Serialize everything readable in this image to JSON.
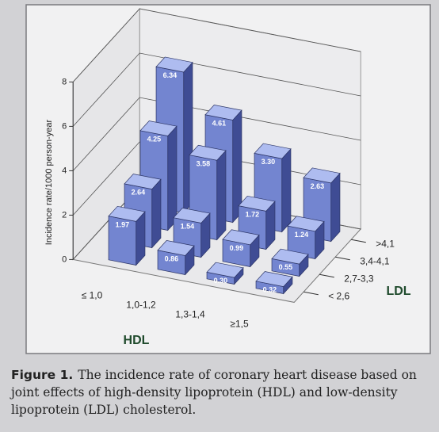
{
  "chart_data": {
    "type": "bar3d",
    "y_label": "Incidence rate/1000 person-year",
    "x_label": "HDL",
    "z_label": "LDL",
    "categories": [
      "≤ 1,0",
      "1,0-1,2",
      "1,3-1,4",
      "≥1,5"
    ],
    "series": [
      {
        "name": "< 2,6",
        "color": "#7385d0",
        "values": [
          1.97,
          0.86,
          0.3,
          0.32
        ],
        "value_labels": [
          "1.97",
          "0.86",
          "0.30",
          "0.32"
        ]
      },
      {
        "name": "2,7-3,3",
        "color": "#7385d0",
        "values": [
          2.64,
          1.54,
          0.99,
          0.55
        ],
        "value_labels": [
          "2.64",
          "1.54",
          "0.99",
          "0.55"
        ]
      },
      {
        "name": "3,4-4,1",
        "color": "#7385d0",
        "values": [
          4.25,
          3.58,
          1.72,
          1.24
        ],
        "value_labels": [
          "4.25",
          "3.58",
          "1.72",
          "1.24"
        ]
      },
      {
        "name": ">4,1",
        "color": "#7385d0",
        "values": [
          6.34,
          4.61,
          3.3,
          2.63
        ],
        "value_labels": [
          "6.34",
          "4.61",
          "3.30",
          "2.63"
        ]
      }
    ],
    "ylim": [
      0,
      8
    ],
    "yticks": [
      0,
      2,
      4,
      6,
      8
    ],
    "grid": true
  },
  "caption": {
    "label": "Figure 1.",
    "text": "The incidence rate of coronary heart disease based on joint effects of high-density lipoprotein (HDL) and low-density lipoprotein (LDL) cholesterol."
  }
}
